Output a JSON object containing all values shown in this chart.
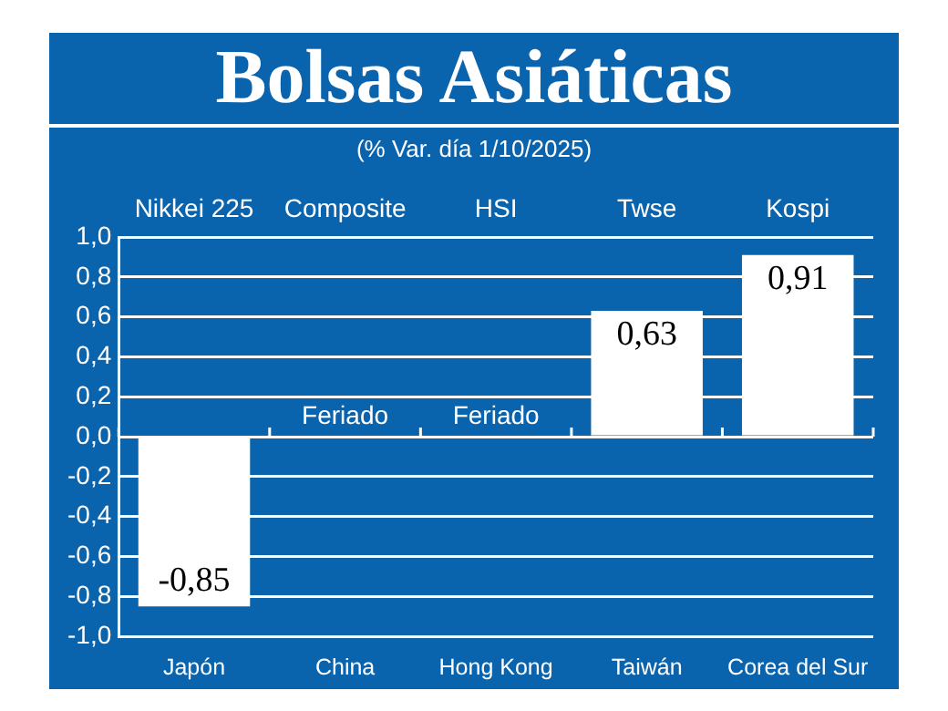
{
  "chart_data": {
    "type": "bar",
    "title": "Bolsas Asiáticas",
    "subtitle": "(% Var. día 1/10/2025)",
    "categories": [
      "Japón",
      "China",
      "Hong Kong",
      "Taiwán",
      "Corea del Sur"
    ],
    "values": [
      -0.85,
      null,
      null,
      0.63,
      0.91
    ],
    "value_labels": [
      "-0,85",
      "Feriado",
      "Feriado",
      "0,63",
      "0,91"
    ],
    "color": "#ffffff",
    "annotations": [
      "Nikkei 225",
      "Composite",
      "HSI",
      "Twse",
      "Kospi"
    ],
    "ylim": [
      -1.0,
      1.0
    ],
    "yticks": [
      {
        "value": -1.0,
        "label": "-1,0"
      },
      {
        "value": -0.8,
        "label": "-0,8"
      },
      {
        "value": -0.6,
        "label": "-0,6"
      },
      {
        "value": -0.4,
        "label": "-0,4"
      },
      {
        "value": -0.2,
        "label": "-0,2"
      },
      {
        "value": 0,
        "label": "0,0"
      },
      {
        "value": 0.2,
        "label": "0,2"
      },
      {
        "value": 0.4,
        "label": "0,4"
      },
      {
        "value": 0.6,
        "label": "0,6"
      },
      {
        "value": 0.8,
        "label": "0,8"
      },
      {
        "value": 1.0,
        "label": "1,0"
      }
    ],
    "grid": "y",
    "legend": false
  }
}
